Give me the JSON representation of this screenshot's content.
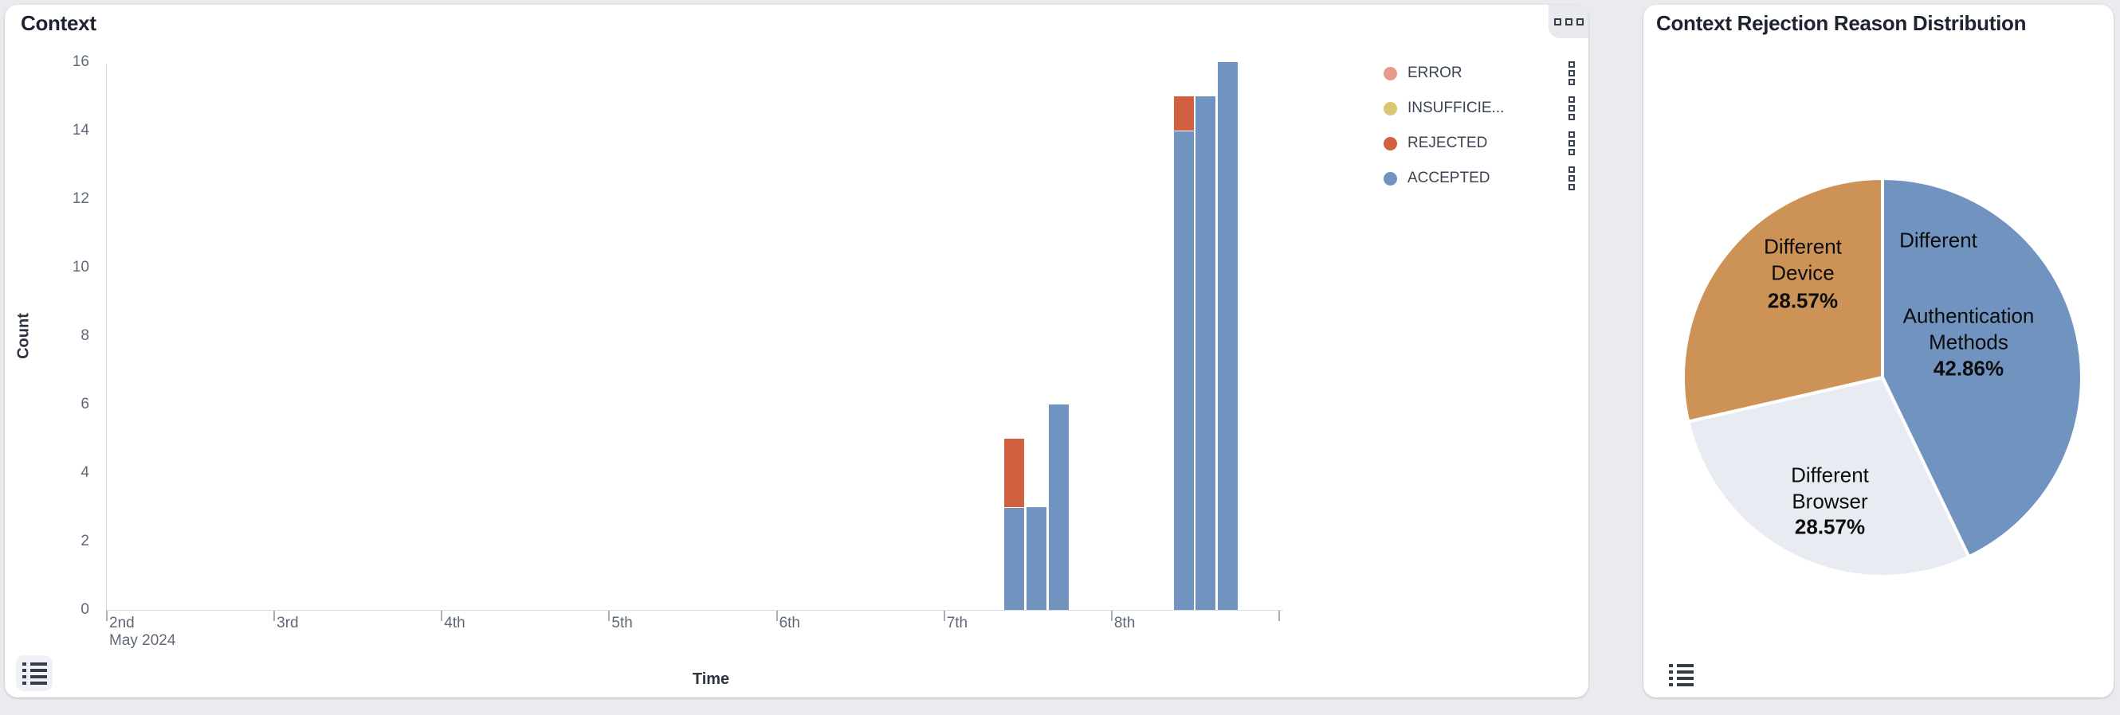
{
  "page": {
    "background": "#e9ebee"
  },
  "context_card": {
    "title": "Context",
    "menu_button": "squares-menu",
    "table_button": "show-data-table",
    "legend": [
      {
        "label": "ERROR",
        "color": "#e69a8b"
      },
      {
        "label": "INSUFFICIE...",
        "color": "#d9c673"
      },
      {
        "label": "REJECTED",
        "color": "#d0603f"
      },
      {
        "label": "ACCEPTED",
        "color": "#7093c0"
      }
    ],
    "chart_data": {
      "type": "bar",
      "stacked": true,
      "title": "Context",
      "xlabel": "Time",
      "ylabel": "Count",
      "ylim": [
        0,
        16
      ],
      "y_ticks": [
        0,
        2,
        4,
        6,
        8,
        10,
        12,
        14,
        16
      ],
      "x_ticks": [
        "2nd",
        "3rd",
        "4th",
        "5th",
        "6th",
        "7th",
        "8th",
        ""
      ],
      "x_tick_sub_label": "May 2024",
      "grid": false,
      "legend_position": "top-right",
      "series_colors": {
        "ERROR": "#e69a8b",
        "INSUFFICIE...": "#d9c673",
        "REJECTED": "#d0603f",
        "ACCEPTED": "#7093c0"
      },
      "bars": [
        {
          "x_frac": 0.766,
          "segments": [
            {
              "series": "ACCEPTED",
              "value": 3
            },
            {
              "series": "REJECTED",
              "value": 2
            }
          ]
        },
        {
          "x_frac": 0.785,
          "segments": [
            {
              "series": "ACCEPTED",
              "value": 3
            }
          ]
        },
        {
          "x_frac": 0.804,
          "segments": [
            {
              "series": "ACCEPTED",
              "value": 6
            }
          ]
        },
        {
          "x_frac": 0.911,
          "segments": [
            {
              "series": "ACCEPTED",
              "value": 14
            },
            {
              "series": "REJECTED",
              "value": 1
            }
          ]
        },
        {
          "x_frac": 0.929,
          "segments": [
            {
              "series": "ACCEPTED",
              "value": 15
            }
          ]
        },
        {
          "x_frac": 0.948,
          "segments": [
            {
              "series": "ACCEPTED",
              "value": 16
            }
          ]
        }
      ]
    }
  },
  "pie_card": {
    "title": "Context Rejection Reason Distribution",
    "table_button": "show-data-table",
    "chart_data": {
      "type": "pie",
      "start_angle": "12 o'clock, clockwise",
      "slices": [
        {
          "label": "Different Authentication Methods",
          "label_lines": [
            "Different",
            "Authentication",
            "Methods"
          ],
          "pct_label": "42.86%",
          "value_pct": 42.86,
          "color": "#7093c0"
        },
        {
          "label": "Different Browser",
          "label_lines": [
            "Different",
            "Browser"
          ],
          "pct_label": "28.57%",
          "value_pct": 28.57,
          "color": "#e8ecf2"
        },
        {
          "label": "Different Device",
          "label_lines": [
            "Different",
            "Device"
          ],
          "pct_label": "28.57%",
          "value_pct": 28.57,
          "color": "#cd9356"
        }
      ]
    }
  }
}
